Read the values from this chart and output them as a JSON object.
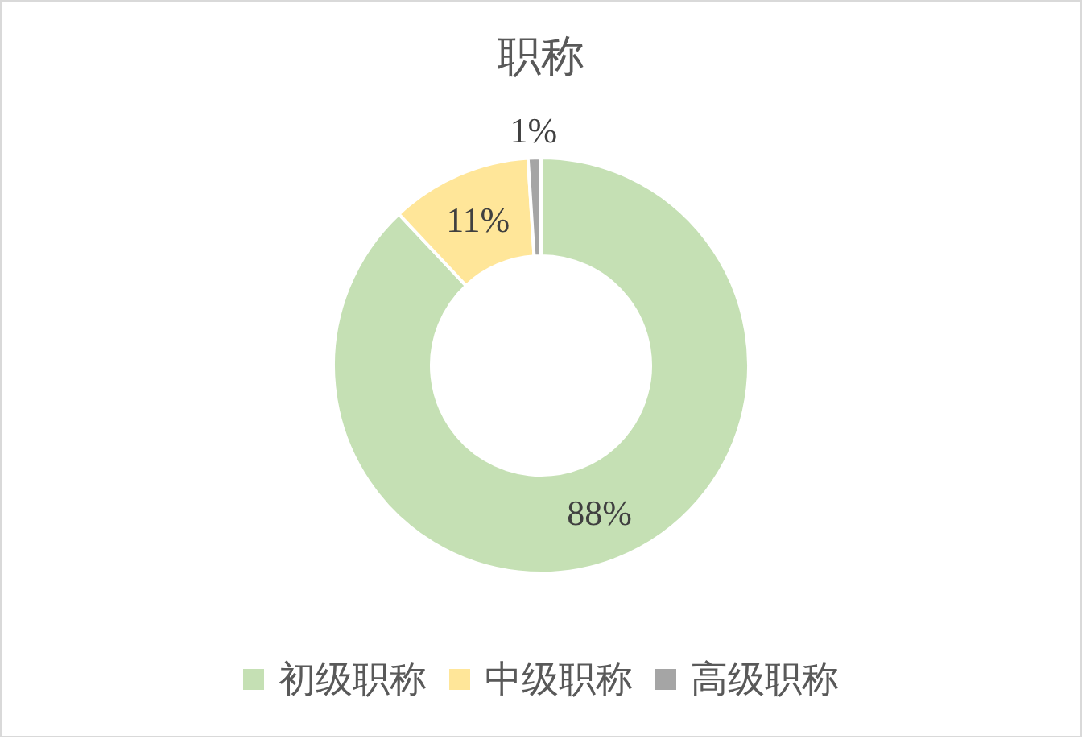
{
  "chart_data": {
    "type": "donut",
    "title": "职称",
    "categories": [
      "初级职称",
      "中级职称",
      "高级职称"
    ],
    "values": [
      88,
      11,
      1
    ],
    "colors": [
      "#c5e0b4",
      "#ffe699",
      "#a5a5a5"
    ],
    "value_labels": [
      "88%",
      "11%",
      "1%"
    ],
    "legend": "bottom"
  }
}
